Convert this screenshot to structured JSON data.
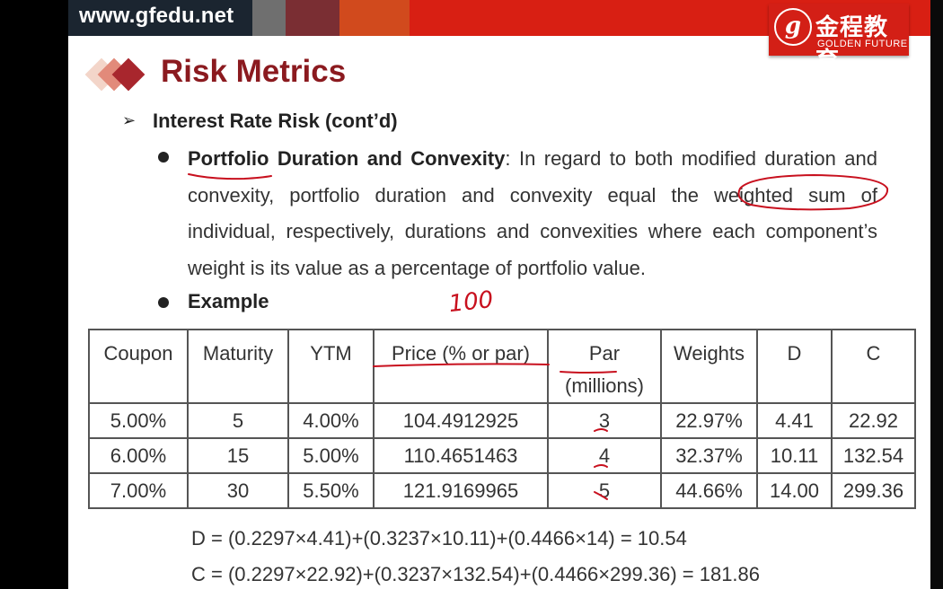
{
  "header": {
    "url": "www.gfedu.net",
    "colors": [
      "#1b2530",
      "#6f6f6f",
      "#7a2e33",
      "#4a2428",
      "#d14a1d",
      "#d81f13"
    ]
  },
  "logo": {
    "chinese_name": "金程教育",
    "english_name": "GOLDEN FUTURE",
    "mark": "g"
  },
  "slide": {
    "title": "Risk Metrics",
    "subtitle": "Interest Rate Risk (cont’d)",
    "bullet1_term": "Portfolio Duration and Convexity",
    "bullet1_text": ": In regard to both modified duration and convexity, portfolio duration and convexity equal the weighted sum of individual, respectively, durations and convexities where each component’s weight is its value as a percentage of portfolio value.",
    "bullet2": "Example",
    "annotation": "100"
  },
  "table": {
    "headers": [
      "Coupon",
      "Maturity",
      "YTM",
      "Price (% or par)",
      "Par",
      "Weights",
      "D",
      "C"
    ],
    "par_subheader": "(millions)",
    "rows": [
      [
        "5.00%",
        "5",
        "4.00%",
        "104.4912925",
        "3",
        "22.97%",
        "4.41",
        "22.92"
      ],
      [
        "6.00%",
        "15",
        "5.00%",
        "110.4651463",
        "4",
        "32.37%",
        "10.11",
        "132.54"
      ],
      [
        "7.00%",
        "30",
        "5.50%",
        "121.9169965",
        "5",
        "44.66%",
        "14.00",
        "299.36"
      ]
    ]
  },
  "formulas": {
    "duration": "D = (0.2297×4.41)+(0.3237×10.11)+(0.4466×14) = 10.54",
    "convexity": "C = (0.2297×22.92)+(0.3237×132.54)+(0.4466×299.36) = 181.86"
  },
  "colors": {
    "title": "#8b1a1f",
    "ink": "#c8101e"
  }
}
